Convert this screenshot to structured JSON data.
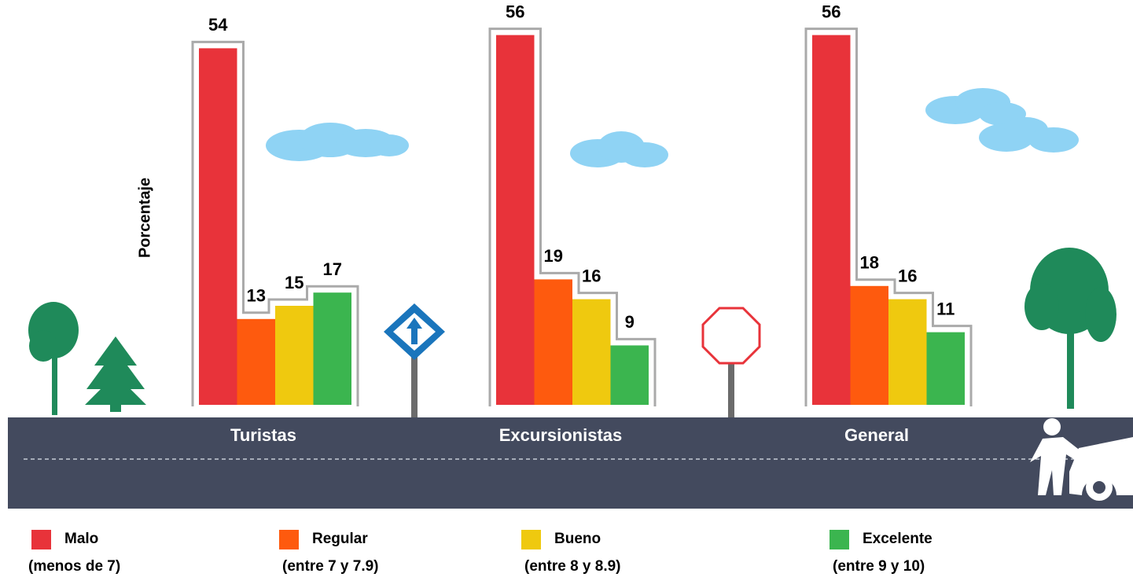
{
  "chart_data": {
    "type": "bar",
    "y_label": "Porcentaje",
    "categories": [
      "Turistas",
      "Excursionistas",
      "General"
    ],
    "series": [
      {
        "name": "Malo",
        "description": "(menos de 7)",
        "color": "#e8333a",
        "values": [
          54,
          56,
          56
        ]
      },
      {
        "name": "Regular",
        "description": "(entre 7 y 7.9)",
        "color": "#fe5a0e",
        "values": [
          13,
          19,
          18
        ]
      },
      {
        "name": "Bueno",
        "description": "(entre 8 y 8.9)",
        "color": "#efc90f",
        "values": [
          15,
          16,
          16
        ]
      },
      {
        "name": "Excelente",
        "description": "(entre 9 y 10)",
        "color": "#3bb54f",
        "values": [
          17,
          9,
          11
        ]
      }
    ]
  }
}
